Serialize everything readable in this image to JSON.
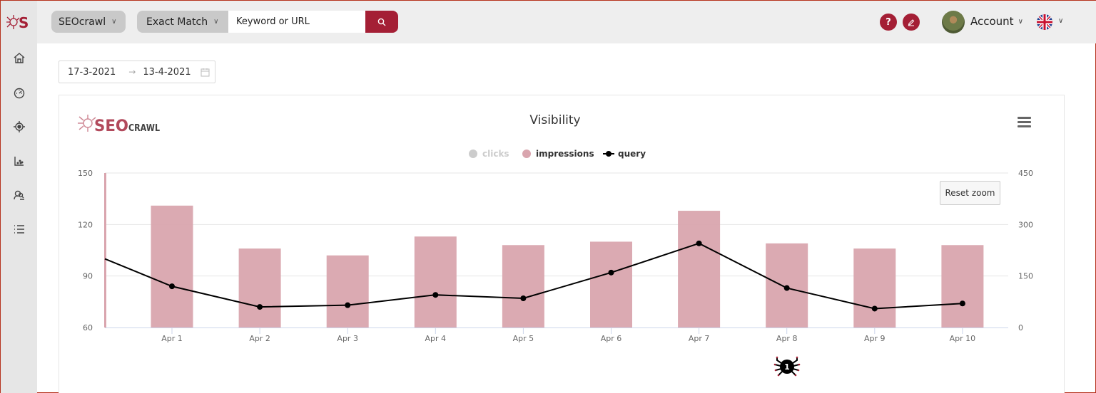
{
  "topbar": {
    "project_select": "SEOcrawl",
    "match_select": "Exact Match",
    "search_placeholder": "Keyword or URL",
    "help_label": "?",
    "account_label": "Account"
  },
  "sidebar": {
    "items": [
      {
        "name": "home-icon"
      },
      {
        "name": "dashboard-icon"
      },
      {
        "name": "target-icon"
      },
      {
        "name": "scatter-chart-icon"
      },
      {
        "name": "users-search-icon"
      },
      {
        "name": "list-icon"
      }
    ]
  },
  "date_range": {
    "start": "17-3-2021",
    "arrow": "→",
    "end": "13-4-2021"
  },
  "chart": {
    "reset_zoom_label": "Reset zoom",
    "watermark_left": "SEO",
    "watermark_right": "CRAWL",
    "annotation_badge": "1"
  },
  "colors": {
    "accent": "#a41f35",
    "bar": "#d9a5ae",
    "line": "#000000",
    "clicks_legend_inactive": "#cccccc"
  },
  "chart_data": {
    "type": "bar",
    "title": "Visibility",
    "legend": [
      {
        "name": "clicks",
        "type": "area",
        "visible": false,
        "color": "#cccccc"
      },
      {
        "name": "impressions",
        "type": "bar",
        "visible": true,
        "color": "#d9a5ae"
      },
      {
        "name": "query",
        "type": "line",
        "visible": true,
        "color": "#000000"
      }
    ],
    "legend_position": "top-center",
    "categories": [
      "Apr 1",
      "Apr 2",
      "Apr 3",
      "Apr 4",
      "Apr 5",
      "Apr 6",
      "Apr 7",
      "Apr 8",
      "Apr 9",
      "Apr 10"
    ],
    "series": [
      {
        "name": "impressions",
        "type": "bar",
        "axis": "left",
        "values": [
          131,
          106,
          102,
          113,
          108,
          110,
          128,
          109,
          106,
          108
        ]
      },
      {
        "name": "query",
        "type": "line",
        "axis": "left",
        "values": [
          84,
          72,
          73,
          79,
          77,
          92,
          109,
          83,
          71,
          74
        ],
        "prev_value": 100
      }
    ],
    "y_left": {
      "ticks": [
        60,
        90,
        120,
        150
      ],
      "ylim": [
        60,
        150
      ]
    },
    "y_right": {
      "ticks": [
        0,
        150,
        300,
        450
      ],
      "ylim": [
        0,
        450
      ]
    },
    "xlabel": "",
    "ylabel": "",
    "grid": true,
    "annotation": {
      "at": "Apr 8",
      "label": "1",
      "icon": "spider-icon"
    }
  }
}
